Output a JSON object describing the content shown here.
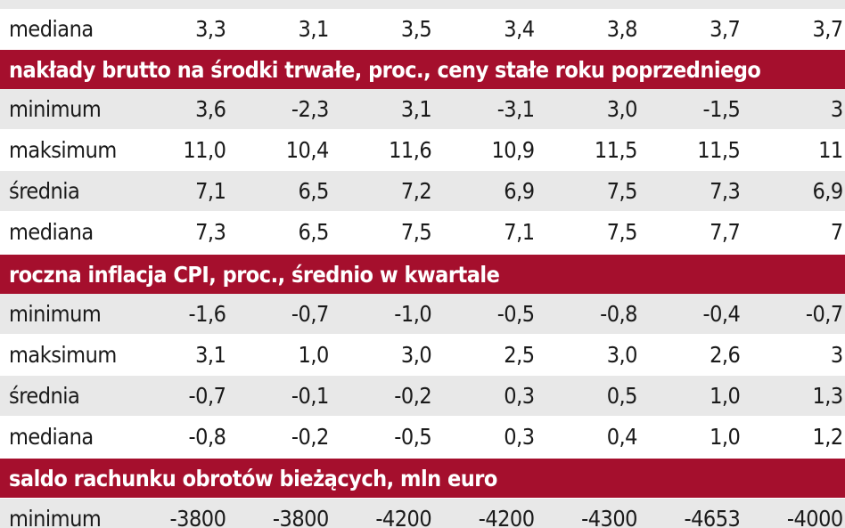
{
  "sections": [
    {
      "rows": [
        {
          "label": "mediana",
          "values": [
            "3,3",
            "3,1",
            "3,5",
            "3,4",
            "3,8",
            "3,7",
            "3,7"
          ]
        }
      ]
    },
    {
      "header": "nakłady brutto na środki trwałe, proc., ceny stałe roku poprzedniego",
      "rows": [
        {
          "label": "minimum",
          "values": [
            "3,6",
            "-2,3",
            "3,1",
            "-3,1",
            "3,0",
            "-1,5",
            "3"
          ]
        },
        {
          "label": "maksimum",
          "values": [
            "11,0",
            "10,4",
            "11,6",
            "10,9",
            "11,5",
            "11,5",
            "11"
          ]
        },
        {
          "label": "średnia",
          "values": [
            "7,1",
            "6,5",
            "7,2",
            "6,9",
            "7,5",
            "7,3",
            "6,9"
          ]
        },
        {
          "label": "mediana",
          "values": [
            "7,3",
            "6,5",
            "7,5",
            "7,1",
            "7,5",
            "7,7",
            "7"
          ]
        }
      ]
    },
    {
      "header": "roczna inflacja CPI, proc., średnio w kwartale",
      "rows": [
        {
          "label": "minimum",
          "values": [
            "-1,6",
            "-0,7",
            "-1,0",
            "-0,5",
            "-0,8",
            "-0,4",
            "-0,7"
          ]
        },
        {
          "label": "maksimum",
          "values": [
            "3,1",
            "1,0",
            "3,0",
            "2,5",
            "3,0",
            "2,6",
            "3"
          ]
        },
        {
          "label": "średnia",
          "values": [
            "-0,7",
            "-0,1",
            "-0,2",
            "0,3",
            "0,5",
            "1,0",
            "1,3"
          ]
        },
        {
          "label": "mediana",
          "values": [
            "-0,8",
            "-0,2",
            "-0,5",
            "0,3",
            "0,4",
            "1,0",
            "1,2"
          ]
        }
      ]
    },
    {
      "header": "saldo rachunku obrotów bieżących, mln euro",
      "rows": [
        {
          "label": "minimum",
          "values": [
            "-3800",
            "-3800",
            "-4200",
            "-4200",
            "-4300",
            "-4653",
            "-4000"
          ]
        }
      ]
    }
  ],
  "colors": {
    "header_bg": "#a50f2d",
    "header_text": "#ffffff",
    "row_shade": "#e8e8e8",
    "text": "#1a1a1a"
  }
}
